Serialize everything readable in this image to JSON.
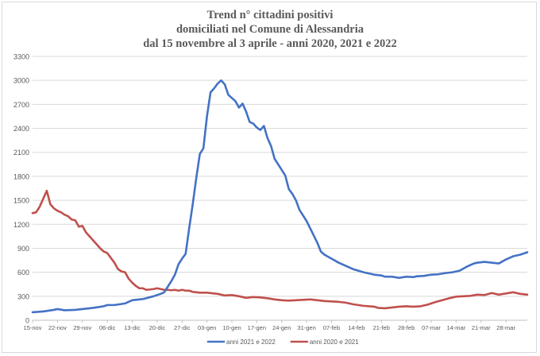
{
  "chart_data": {
    "type": "line",
    "title": [
      "Trend n° cittadini positivi",
      "domiciliati nel Comune di Alessandria",
      "dal 15 novembre al 3 aprile - anni 2020, 2021 e 2022"
    ],
    "xlabel": "",
    "ylabel": "",
    "ylim": [
      0,
      3300
    ],
    "yticks": [
      0,
      300,
      600,
      900,
      1200,
      1500,
      1800,
      2100,
      2400,
      2700,
      3000,
      3300
    ],
    "grid": true,
    "legend_position": "bottom",
    "x_day_range": [
      0,
      139
    ],
    "x_tick_labels": [
      {
        "day": 0,
        "label": "15-nov"
      },
      {
        "day": 7,
        "label": "22-nov"
      },
      {
        "day": 14,
        "label": "29-nov"
      },
      {
        "day": 21,
        "label": "06-dic"
      },
      {
        "day": 28,
        "label": "13-dic"
      },
      {
        "day": 35,
        "label": "20-dic"
      },
      {
        "day": 42,
        "label": "27-dic"
      },
      {
        "day": 49,
        "label": "03-gen"
      },
      {
        "day": 56,
        "label": "10-gen"
      },
      {
        "day": 63,
        "label": "17-gen"
      },
      {
        "day": 70,
        "label": "24-gen"
      },
      {
        "day": 77,
        "label": "31-gen"
      },
      {
        "day": 84,
        "label": "07-feb"
      },
      {
        "day": 91,
        "label": "14-feb"
      },
      {
        "day": 98,
        "label": "21-feb"
      },
      {
        "day": 105,
        "label": "28-feb"
      },
      {
        "day": 112,
        "label": "07-mar"
      },
      {
        "day": 119,
        "label": "14-mar"
      },
      {
        "day": 126,
        "label": "21-mar"
      },
      {
        "day": 133,
        "label": "28-mar"
      }
    ],
    "series": [
      {
        "name": "anni 2021 e 2022",
        "color": "#4472c4",
        "points": [
          [
            0,
            100
          ],
          [
            3,
            110
          ],
          [
            6,
            130
          ],
          [
            7,
            140
          ],
          [
            9,
            125
          ],
          [
            12,
            130
          ],
          [
            14,
            140
          ],
          [
            17,
            155
          ],
          [
            20,
            175
          ],
          [
            21,
            190
          ],
          [
            23,
            190
          ],
          [
            26,
            210
          ],
          [
            28,
            250
          ],
          [
            31,
            265
          ],
          [
            34,
            300
          ],
          [
            36,
            330
          ],
          [
            37,
            350
          ],
          [
            38,
            420
          ],
          [
            39,
            490
          ],
          [
            40,
            570
          ],
          [
            41,
            700
          ],
          [
            42,
            770
          ],
          [
            43,
            830
          ],
          [
            44,
            1150
          ],
          [
            45,
            1450
          ],
          [
            46,
            1780
          ],
          [
            47,
            2080
          ],
          [
            48,
            2150
          ],
          [
            49,
            2550
          ],
          [
            50,
            2850
          ],
          [
            51,
            2900
          ],
          [
            52,
            2960
          ],
          [
            53,
            3000
          ],
          [
            54,
            2950
          ],
          [
            55,
            2820
          ],
          [
            56,
            2780
          ],
          [
            57,
            2740
          ],
          [
            58,
            2660
          ],
          [
            59,
            2710
          ],
          [
            60,
            2610
          ],
          [
            61,
            2480
          ],
          [
            62,
            2460
          ],
          [
            63,
            2410
          ],
          [
            64,
            2380
          ],
          [
            65,
            2430
          ],
          [
            66,
            2280
          ],
          [
            67,
            2180
          ],
          [
            68,
            2020
          ],
          [
            69,
            1950
          ],
          [
            70,
            1880
          ],
          [
            71,
            1810
          ],
          [
            72,
            1640
          ],
          [
            73,
            1580
          ],
          [
            74,
            1500
          ],
          [
            75,
            1380
          ],
          [
            76,
            1310
          ],
          [
            77,
            1240
          ],
          [
            78,
            1150
          ],
          [
            79,
            1060
          ],
          [
            80,
            970
          ],
          [
            81,
            860
          ],
          [
            82,
            820
          ],
          [
            84,
            770
          ],
          [
            86,
            720
          ],
          [
            87,
            700
          ],
          [
            88,
            680
          ],
          [
            90,
            640
          ],
          [
            93,
            600
          ],
          [
            96,
            570
          ],
          [
            98,
            560
          ],
          [
            99,
            545
          ],
          [
            101,
            545
          ],
          [
            103,
            530
          ],
          [
            105,
            545
          ],
          [
            107,
            540
          ],
          [
            108,
            550
          ],
          [
            110,
            555
          ],
          [
            112,
            570
          ],
          [
            114,
            575
          ],
          [
            116,
            590
          ],
          [
            118,
            600
          ],
          [
            120,
            620
          ],
          [
            122,
            670
          ],
          [
            124,
            710
          ],
          [
            125,
            720
          ],
          [
            127,
            730
          ],
          [
            129,
            720
          ],
          [
            131,
            710
          ],
          [
            133,
            760
          ],
          [
            135,
            800
          ],
          [
            137,
            820
          ],
          [
            139,
            850
          ]
        ]
      },
      {
        "name": "anni 2020 e 2021",
        "color": "#c0504d",
        "points": [
          [
            0,
            1340
          ],
          [
            1,
            1350
          ],
          [
            2,
            1420
          ],
          [
            3,
            1520
          ],
          [
            4,
            1620
          ],
          [
            5,
            1450
          ],
          [
            6,
            1400
          ],
          [
            7,
            1370
          ],
          [
            8,
            1350
          ],
          [
            9,
            1320
          ],
          [
            10,
            1300
          ],
          [
            11,
            1260
          ],
          [
            12,
            1250
          ],
          [
            13,
            1170
          ],
          [
            14,
            1180
          ],
          [
            15,
            1100
          ],
          [
            16,
            1050
          ],
          [
            17,
            1000
          ],
          [
            18,
            950
          ],
          [
            19,
            900
          ],
          [
            20,
            860
          ],
          [
            21,
            840
          ],
          [
            22,
            780
          ],
          [
            23,
            720
          ],
          [
            24,
            640
          ],
          [
            25,
            610
          ],
          [
            26,
            600
          ],
          [
            27,
            520
          ],
          [
            28,
            470
          ],
          [
            29,
            430
          ],
          [
            30,
            400
          ],
          [
            31,
            400
          ],
          [
            32,
            380
          ],
          [
            33,
            385
          ],
          [
            34,
            390
          ],
          [
            35,
            400
          ],
          [
            36,
            390
          ],
          [
            37,
            380
          ],
          [
            38,
            380
          ],
          [
            39,
            375
          ],
          [
            40,
            380
          ],
          [
            41,
            370
          ],
          [
            42,
            380
          ],
          [
            43,
            370
          ],
          [
            44,
            370
          ],
          [
            45,
            355
          ],
          [
            46,
            350
          ],
          [
            47,
            345
          ],
          [
            49,
            345
          ],
          [
            52,
            330
          ],
          [
            54,
            310
          ],
          [
            56,
            315
          ],
          [
            58,
            300
          ],
          [
            60,
            280
          ],
          [
            62,
            290
          ],
          [
            64,
            285
          ],
          [
            66,
            275
          ],
          [
            68,
            260
          ],
          [
            70,
            250
          ],
          [
            72,
            245
          ],
          [
            74,
            250
          ],
          [
            76,
            255
          ],
          [
            78,
            260
          ],
          [
            80,
            250
          ],
          [
            82,
            240
          ],
          [
            84,
            235
          ],
          [
            86,
            230
          ],
          [
            88,
            220
          ],
          [
            90,
            200
          ],
          [
            93,
            180
          ],
          [
            96,
            170
          ],
          [
            97,
            155
          ],
          [
            99,
            150
          ],
          [
            101,
            160
          ],
          [
            103,
            170
          ],
          [
            105,
            175
          ],
          [
            107,
            170
          ],
          [
            109,
            175
          ],
          [
            111,
            195
          ],
          [
            113,
            225
          ],
          [
            115,
            250
          ],
          [
            117,
            275
          ],
          [
            119,
            295
          ],
          [
            121,
            300
          ],
          [
            123,
            305
          ],
          [
            125,
            320
          ],
          [
            127,
            315
          ],
          [
            129,
            340
          ],
          [
            131,
            320
          ],
          [
            133,
            335
          ],
          [
            135,
            350
          ],
          [
            137,
            330
          ],
          [
            139,
            320
          ]
        ]
      }
    ]
  }
}
